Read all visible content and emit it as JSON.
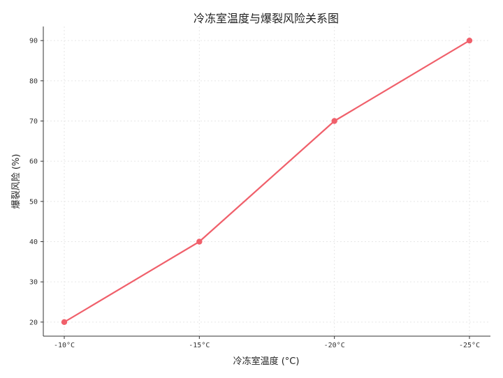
{
  "chart_data": {
    "type": "line",
    "title": "冷冻室温度与爆裂风险关系图",
    "xlabel": "冷冻室温度 (°C)",
    "ylabel": "爆裂风险 (%)",
    "categories": [
      "-10°C",
      "-15°C",
      "-20°C",
      "-25°C"
    ],
    "series": [
      {
        "values": [
          20,
          40,
          70,
          90
        ],
        "color": "#f0606b"
      }
    ],
    "ylim": [
      16.5,
      93.5
    ],
    "yticks": [
      20,
      30,
      40,
      50,
      60,
      70,
      80,
      90
    ],
    "grid": true
  }
}
